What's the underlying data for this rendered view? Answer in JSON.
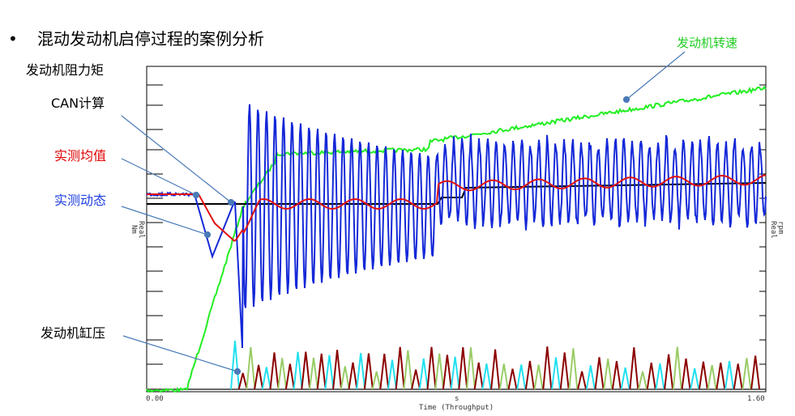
{
  "bullet": "•",
  "title": "混动发动机启停过程的案例分析",
  "labels": {
    "resistance": "发动机阻力矩",
    "can": "CAN计算",
    "mean": "实测均值",
    "dynamic": "实测动态",
    "cylinder": "发动机缸压",
    "speed": "发动机转速"
  },
  "axes": {
    "x_start": "0.00",
    "x_end": "1.60",
    "x_unit": "s",
    "x_title": "Time (Throughput)",
    "y_left_unit": "Nm",
    "y_left_type": "Real",
    "y_right_type": "Real",
    "y_right_unit": "rpm"
  }
}
